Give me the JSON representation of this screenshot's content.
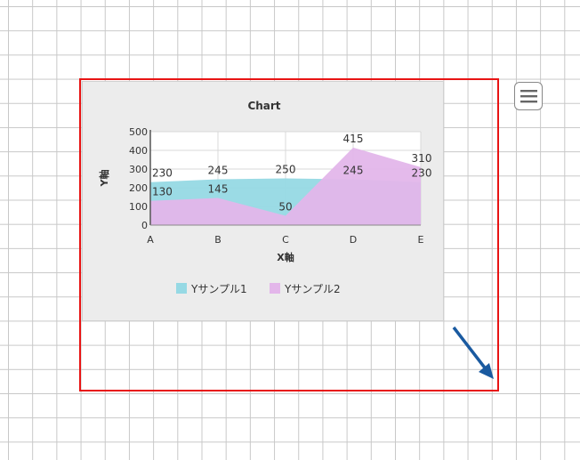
{
  "chart_data": {
    "type": "area",
    "title": "Chart",
    "xlabel": "X軸",
    "ylabel": "Y軸",
    "categories": [
      "A",
      "B",
      "C",
      "D",
      "E"
    ],
    "ylim": [
      0,
      500
    ],
    "yticks": [
      "0",
      "100",
      "200",
      "300",
      "400",
      "500"
    ],
    "grid": true,
    "legend_position": "bottom",
    "series": [
      {
        "name": "Yサンプル1",
        "values": [
          230,
          245,
          250,
          245,
          230
        ],
        "color": "#96d9e4"
      },
      {
        "name": "Yサンプル2",
        "values": [
          130,
          145,
          50,
          415,
          310
        ],
        "color": "#e3b6ea"
      }
    ]
  },
  "menu": {
    "icon": "hamburger-menu-icon"
  },
  "resize_handle": {
    "icon": "resize-arrow-icon",
    "color": "#1a5aa0"
  }
}
